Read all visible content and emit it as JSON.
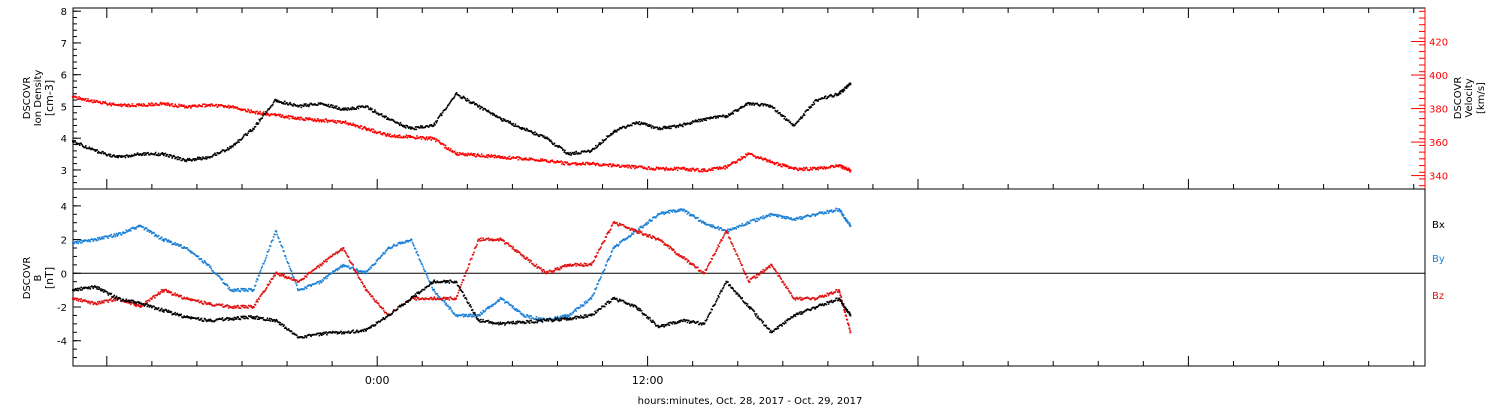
{
  "xaxis": {
    "title": "hours:minutes, Oct. 28, 2017 - Oct. 29, 2017",
    "tick_labels": [
      "0:00",
      "12:00"
    ]
  },
  "panel_top": {
    "left_title": [
      "DSCOVR",
      "Ion Density",
      "[cm-3]"
    ],
    "right_title": [
      "DSCOVR",
      "Velocity",
      "[km/s]"
    ],
    "colors": {
      "density": "#000000",
      "velocity": "#ff0000"
    }
  },
  "panel_bottom": {
    "left_title": [
      "DSCOVR",
      "B",
      "[nT]"
    ],
    "legend": [
      {
        "label": "Bx",
        "color": "#000000"
      },
      {
        "label": "By",
        "color": "#1a7fd6"
      },
      {
        "label": "Bz",
        "color": "#e01010"
      }
    ]
  },
  "chart_data": [
    {
      "type": "scatter",
      "title": "",
      "xlabel": "hours:minutes, Oct. 28, 2017 - Oct. 29, 2017",
      "x_unit": "hours since 2017-10-28 00:00",
      "xlim": [
        -13.5,
        46.5
      ],
      "ylabel": "DSCOVR Ion Density [cm-3]",
      "ylim": [
        2.4,
        8.1
      ],
      "y_ticks": [
        3,
        4,
        5,
        6,
        7,
        8
      ],
      "ylabel_right": "DSCOVR Velocity [km/s]",
      "ylim_right": [
        332,
        440
      ],
      "y_ticks_right": [
        340,
        360,
        380,
        400,
        420
      ],
      "series": [
        {
          "name": "Ion Density",
          "axis": "left",
          "color": "#000000",
          "x": [
            -13.5,
            -12.5,
            -11.5,
            -10.5,
            -9.5,
            -8.5,
            -7.5,
            -6.5,
            -5.5,
            -4.5,
            -3.5,
            -2.5,
            -1.5,
            -0.5,
            0.5,
            1.5,
            2.5,
            3.5,
            4.5,
            5.5,
            6.5,
            7.5,
            8.5,
            9.5,
            10.5,
            11.5,
            12.5,
            13.5,
            14.5,
            15.5,
            16.5,
            17.5,
            18.5,
            19.5,
            20.5,
            21.0
          ],
          "y": [
            3.9,
            3.6,
            3.4,
            3.5,
            3.5,
            3.3,
            3.4,
            3.7,
            4.3,
            5.2,
            5.0,
            5.1,
            4.9,
            5.0,
            4.6,
            4.3,
            4.4,
            5.4,
            5.0,
            4.6,
            4.3,
            4.0,
            3.5,
            3.6,
            4.2,
            4.5,
            4.3,
            4.4,
            4.6,
            4.7,
            5.1,
            5.0,
            4.4,
            5.2,
            5.4,
            5.7
          ]
        },
        {
          "name": "Velocity",
          "axis": "right",
          "color": "#ff0000",
          "x": [
            -13.5,
            -12.5,
            -11.5,
            -10.5,
            -9.5,
            -8.5,
            -7.5,
            -6.5,
            -5.5,
            -4.5,
            -3.5,
            -2.5,
            -1.5,
            -0.5,
            0.5,
            1.5,
            2.5,
            3.5,
            4.5,
            5.5,
            6.5,
            7.5,
            8.5,
            9.5,
            10.5,
            11.5,
            12.5,
            13.5,
            14.5,
            15.5,
            16.5,
            17.5,
            18.5,
            19.5,
            20.5,
            21.0
          ],
          "y": [
            387,
            384,
            382,
            382,
            383,
            381,
            382,
            381,
            378,
            376,
            374,
            373,
            372,
            368,
            364,
            363,
            362,
            353,
            352,
            351,
            350,
            349,
            347,
            347,
            346,
            345,
            344,
            344,
            343,
            345,
            353,
            348,
            344,
            344,
            346,
            343
          ]
        }
      ]
    },
    {
      "type": "scatter",
      "title": "",
      "xlabel": "hours:minutes, Oct. 28, 2017 - Oct. 29, 2017",
      "x_unit": "hours since 2017-10-28 00:00",
      "xlim": [
        -13.5,
        46.5
      ],
      "ylabel": "DSCOVR B [nT]",
      "ylim": [
        -5.5,
        5.0
      ],
      "y_ticks": [
        -4,
        -2,
        0,
        2,
        4
      ],
      "zero_line": true,
      "series": [
        {
          "name": "Bx",
          "color": "#000000",
          "x": [
            -13.5,
            -12.5,
            -11.5,
            -10.5,
            -9.5,
            -8.5,
            -7.5,
            -6.5,
            -5.5,
            -4.5,
            -3.5,
            -2.5,
            -1.5,
            -0.5,
            0.5,
            1.5,
            2.5,
            3.5,
            4.5,
            5.5,
            6.5,
            7.5,
            8.5,
            9.5,
            10.5,
            11.5,
            12.5,
            13.5,
            14.5,
            15.5,
            16.5,
            17.5,
            18.5,
            19.5,
            20.5,
            21.0
          ],
          "y": [
            -1.0,
            -0.8,
            -1.5,
            -1.8,
            -2.2,
            -2.6,
            -2.8,
            -2.7,
            -2.6,
            -2.8,
            -3.8,
            -3.6,
            -3.5,
            -3.4,
            -2.5,
            -1.5,
            -0.5,
            -0.5,
            -2.8,
            -3.0,
            -2.9,
            -2.8,
            -2.7,
            -2.5,
            -1.5,
            -2.0,
            -3.2,
            -2.8,
            -3.0,
            -0.5,
            -2.0,
            -3.5,
            -2.5,
            -2.0,
            -1.5,
            -2.5
          ]
        },
        {
          "name": "By",
          "color": "#1a7fd6",
          "x": [
            -13.5,
            -12.5,
            -11.5,
            -10.5,
            -9.5,
            -8.5,
            -7.5,
            -6.5,
            -5.5,
            -4.5,
            -3.5,
            -2.5,
            -1.5,
            -0.5,
            0.5,
            1.5,
            2.5,
            3.5,
            4.5,
            5.5,
            6.5,
            7.5,
            8.5,
            9.5,
            10.5,
            11.5,
            12.5,
            13.5,
            14.5,
            15.5,
            16.5,
            17.5,
            18.5,
            19.5,
            20.5,
            21.0
          ],
          "y": [
            1.8,
            2.0,
            2.3,
            2.8,
            2.0,
            1.5,
            0.5,
            -1.0,
            -1.0,
            2.5,
            -1.0,
            -0.5,
            0.5,
            0.0,
            1.5,
            2.0,
            -1.0,
            -2.5,
            -2.5,
            -1.5,
            -2.5,
            -2.8,
            -2.5,
            -1.5,
            1.5,
            2.5,
            3.5,
            3.8,
            3.0,
            2.5,
            3.0,
            3.5,
            3.2,
            3.5,
            3.8,
            2.8
          ]
        },
        {
          "name": "Bz",
          "color": "#e01010",
          "x": [
            -13.5,
            -12.5,
            -11.5,
            -10.5,
            -9.5,
            -8.5,
            -7.5,
            -6.5,
            -5.5,
            -4.5,
            -3.5,
            -2.5,
            -1.5,
            -0.5,
            0.5,
            1.5,
            2.5,
            3.5,
            4.5,
            5.5,
            6.5,
            7.5,
            8.5,
            9.5,
            10.5,
            11.5,
            12.5,
            13.5,
            14.5,
            15.5,
            16.5,
            17.5,
            18.5,
            19.5,
            20.5,
            21.0
          ],
          "y": [
            -1.5,
            -1.8,
            -1.5,
            -2.0,
            -1.0,
            -1.5,
            -1.8,
            -2.0,
            -2.0,
            0.0,
            -0.5,
            0.5,
            1.5,
            -1.0,
            -2.5,
            -1.5,
            -1.5,
            -1.5,
            2.0,
            2.0,
            1.0,
            0.0,
            0.5,
            0.5,
            3.0,
            2.5,
            2.0,
            1.0,
            0.0,
            2.5,
            -0.5,
            0.5,
            -1.5,
            -1.5,
            -1.0,
            -3.5
          ]
        }
      ]
    }
  ]
}
